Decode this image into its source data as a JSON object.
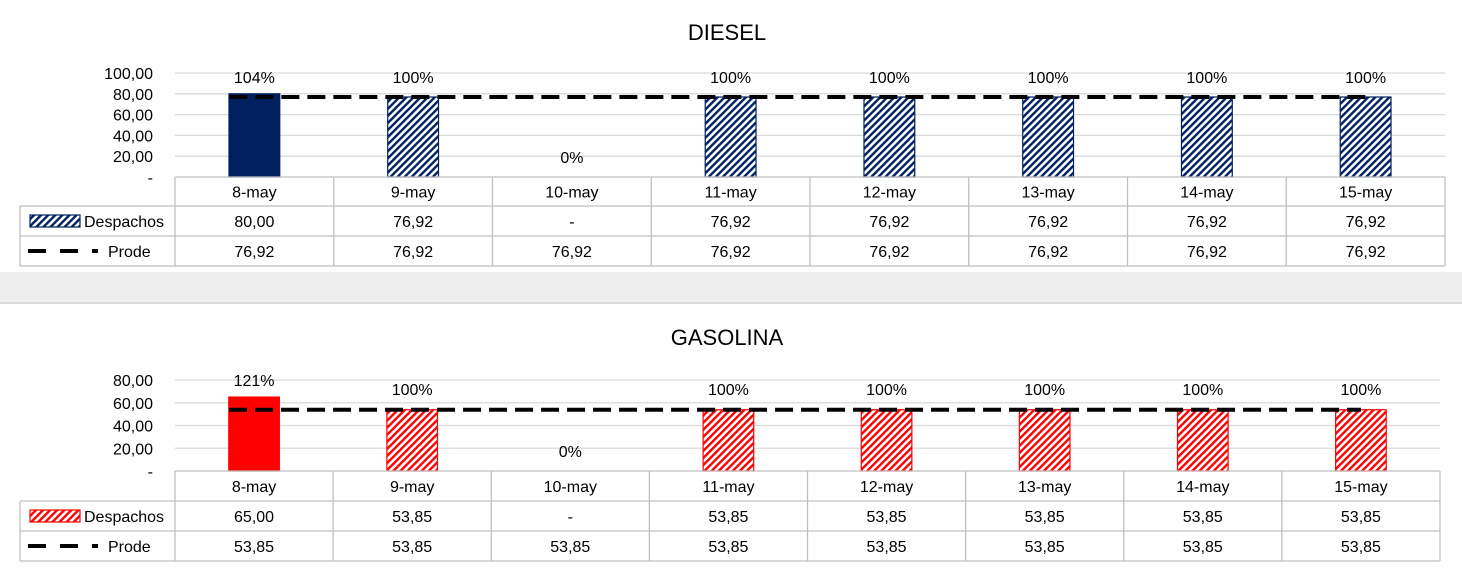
{
  "chart_data": [
    {
      "type": "bar",
      "title": "DIESEL",
      "categories": [
        "8-may",
        "9-may",
        "10-may",
        "11-may",
        "12-may",
        "13-may",
        "14-may",
        "15-may"
      ],
      "yticks": [
        "100,00",
        "80,00",
        "60,00",
        "40,00",
        "20,00",
        "-"
      ],
      "ylim": [
        0,
        100
      ],
      "bar_color": "#002060",
      "series": [
        {
          "name": "Despachos",
          "kind": "bar",
          "values": [
            80.0,
            76.92,
            0,
            76.92,
            76.92,
            76.92,
            76.92,
            76.92
          ],
          "display": [
            "80,00",
            "76,92",
            "-",
            "76,92",
            "76,92",
            "76,92",
            "76,92",
            "76,92"
          ],
          "pattern": [
            "solid",
            "hatched",
            "hatched",
            "hatched",
            "hatched",
            "hatched",
            "hatched",
            "hatched"
          ]
        },
        {
          "name": "Prode",
          "kind": "dashed-line",
          "values": [
            76.92,
            76.92,
            76.92,
            76.92,
            76.92,
            76.92,
            76.92,
            76.92
          ],
          "display": [
            "76,92",
            "76,92",
            "76,92",
            "76,92",
            "76,92",
            "76,92",
            "76,92",
            "76,92"
          ]
        }
      ],
      "data_labels": [
        "104%",
        "100%",
        "0%",
        "100%",
        "100%",
        "100%",
        "100%",
        "100%"
      ],
      "grid": true,
      "legend": "data-table"
    },
    {
      "type": "bar",
      "title": "GASOLINA",
      "categories": [
        "8-may",
        "9-may",
        "10-may",
        "11-may",
        "12-may",
        "13-may",
        "14-may",
        "15-may"
      ],
      "yticks": [
        "80,00",
        "60,00",
        "40,00",
        "20,00",
        "-"
      ],
      "ylim": [
        0,
        80
      ],
      "bar_color": "#ff0000",
      "series": [
        {
          "name": "Despachos",
          "kind": "bar",
          "values": [
            65.0,
            53.85,
            0,
            53.85,
            53.85,
            53.85,
            53.85,
            53.85
          ],
          "display": [
            "65,00",
            "53,85",
            "-",
            "53,85",
            "53,85",
            "53,85",
            "53,85",
            "53,85"
          ],
          "pattern": [
            "solid",
            "hatched",
            "hatched",
            "hatched",
            "hatched",
            "hatched",
            "hatched",
            "hatched"
          ]
        },
        {
          "name": "Prode",
          "kind": "dashed-line",
          "values": [
            53.85,
            53.85,
            53.85,
            53.85,
            53.85,
            53.85,
            53.85,
            53.85
          ],
          "display": [
            "53,85",
            "53,85",
            "53,85",
            "53,85",
            "53,85",
            "53,85",
            "53,85",
            "53,85"
          ]
        }
      ],
      "data_labels": [
        "121%",
        "100%",
        "0%",
        "100%",
        "100%",
        "100%",
        "100%",
        "100%"
      ],
      "grid": true,
      "legend": "data-table"
    }
  ]
}
